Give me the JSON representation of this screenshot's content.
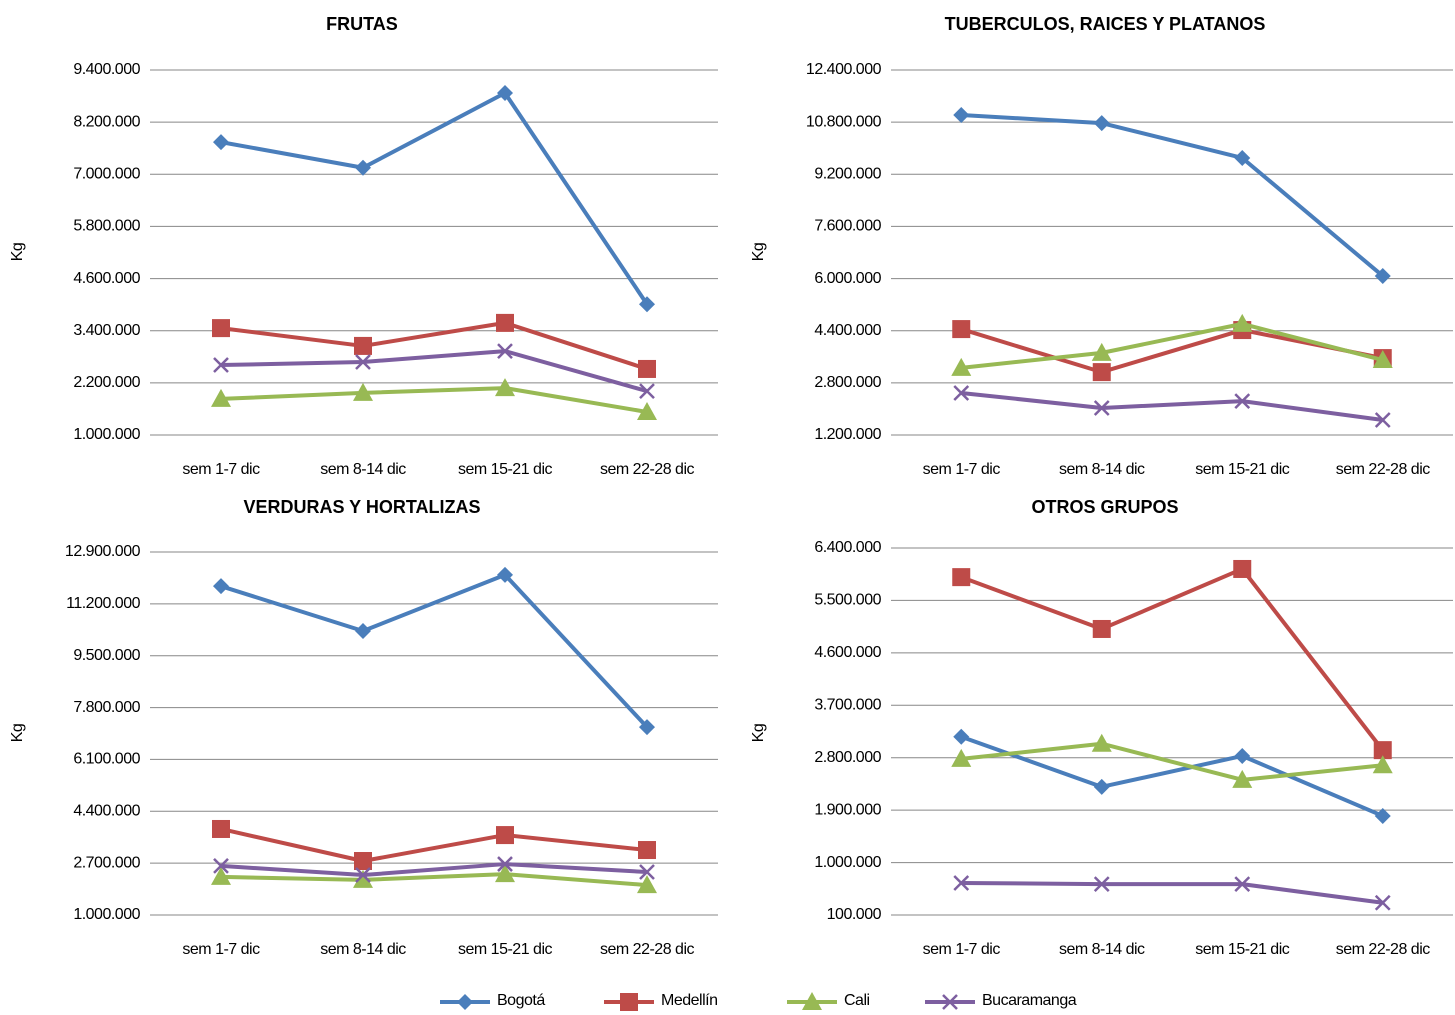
{
  "chart_data": [
    {
      "type": "line",
      "title": "FRUTAS",
      "ylabel": "Kg",
      "grid": true,
      "legend": "bottom",
      "categories": [
        "sem 1-7 dic",
        "sem 8-14 dic",
        "sem 15-21 dic",
        "sem 22-28 dic"
      ],
      "ylim": [
        1000000,
        9400000
      ],
      "yticks": [
        {
          "value": 1000000,
          "label": "1.000.000"
        },
        {
          "value": 2200000,
          "label": "2.200.000"
        },
        {
          "value": 3400000,
          "label": "3.400.000"
        },
        {
          "value": 4600000,
          "label": "4.600.000"
        },
        {
          "value": 5800000,
          "label": "5.800.000"
        },
        {
          "value": 7000000,
          "label": "7.000.000"
        },
        {
          "value": 8200000,
          "label": "8.200.000"
        },
        {
          "value": 9400000,
          "label": "9.400.000"
        }
      ],
      "series": [
        {
          "name": "Bogotá",
          "color": "#4a7ebb",
          "marker": "diamond",
          "values": [
            7740000,
            7150000,
            8870000,
            4010000
          ]
        },
        {
          "name": "Medellín",
          "color": "#be4b48",
          "marker": "square",
          "values": [
            3460000,
            3050000,
            3580000,
            2520000
          ]
        },
        {
          "name": "Cali",
          "color": "#98b954",
          "marker": "triangle",
          "values": [
            1830000,
            1970000,
            2080000,
            1530000
          ]
        },
        {
          "name": "Bucaramanga",
          "color": "#7d5fa0",
          "marker": "x",
          "values": [
            2610000,
            2680000,
            2930000,
            2010000
          ]
        }
      ]
    },
    {
      "type": "line",
      "title": "TUBERCULOS, RAICES Y PLATANOS",
      "ylabel": "Kg",
      "grid": true,
      "categories": [
        "sem 1-7 dic",
        "sem 8-14 dic",
        "sem 15-21 dic",
        "sem 22-28 dic"
      ],
      "ylim": [
        1200000,
        12400000
      ],
      "yticks": [
        {
          "value": 1200000,
          "label": "1.200.000"
        },
        {
          "value": 2800000,
          "label": "2.800.000"
        },
        {
          "value": 4400000,
          "label": "4.400.000"
        },
        {
          "value": 6000000,
          "label": "6.000.000"
        },
        {
          "value": 7600000,
          "label": "7.600.000"
        },
        {
          "value": 9200000,
          "label": "9.200.000"
        },
        {
          "value": 10800000,
          "label": "10.800.000"
        },
        {
          "value": 12400000,
          "label": "12.400.000"
        }
      ],
      "series": [
        {
          "name": "Bogotá",
          "color": "#4a7ebb",
          "marker": "diamond",
          "values": [
            11020000,
            10770000,
            9700000,
            6080000
          ]
        },
        {
          "name": "Medellín",
          "color": "#be4b48",
          "marker": "square",
          "values": [
            4450000,
            3130000,
            4420000,
            3560000
          ]
        },
        {
          "name": "Cali",
          "color": "#98b954",
          "marker": "triangle",
          "values": [
            3260000,
            3720000,
            4610000,
            3500000
          ]
        },
        {
          "name": "Bucaramanga",
          "color": "#7d5fa0",
          "marker": "x",
          "values": [
            2490000,
            2030000,
            2240000,
            1660000
          ]
        }
      ]
    },
    {
      "type": "line",
      "title": "VERDURAS Y HORTALIZAS",
      "ylabel": "Kg",
      "grid": true,
      "categories": [
        "sem 1-7 dic",
        "sem 8-14 dic",
        "sem 15-21 dic",
        "sem 22-28 dic"
      ],
      "ylim": [
        1000000,
        12900000
      ],
      "yticks": [
        {
          "value": 1000000,
          "label": "1.000.000"
        },
        {
          "value": 2700000,
          "label": "2.700.000"
        },
        {
          "value": 4400000,
          "label": "4.400.000"
        },
        {
          "value": 6100000,
          "label": "6.100.000"
        },
        {
          "value": 7800000,
          "label": "7.800.000"
        },
        {
          "value": 9500000,
          "label": "9.500.000"
        },
        {
          "value": 11200000,
          "label": "11.200.000"
        },
        {
          "value": 12900000,
          "label": "12.900.000"
        }
      ],
      "series": [
        {
          "name": "Bogotá",
          "color": "#4a7ebb",
          "marker": "diamond",
          "values": [
            11780000,
            10310000,
            12150000,
            7160000
          ]
        },
        {
          "name": "Medellín",
          "color": "#be4b48",
          "marker": "square",
          "values": [
            3820000,
            2770000,
            3620000,
            3130000
          ]
        },
        {
          "name": "Cali",
          "color": "#98b954",
          "marker": "triangle",
          "values": [
            2250000,
            2150000,
            2340000,
            1980000
          ]
        },
        {
          "name": "Bucaramanga",
          "color": "#7d5fa0",
          "marker": "x",
          "values": [
            2610000,
            2310000,
            2670000,
            2410000
          ]
        }
      ]
    },
    {
      "type": "line",
      "title": "OTROS GRUPOS",
      "ylabel": "Kg",
      "grid": true,
      "categories": [
        "sem 1-7 dic",
        "sem 8-14 dic",
        "sem 15-21 dic",
        "sem 22-28 dic"
      ],
      "ylim": [
        100000,
        6400000
      ],
      "yticks": [
        {
          "value": 100000,
          "label": "100.000"
        },
        {
          "value": 1000000,
          "label": "1.000.000"
        },
        {
          "value": 1900000,
          "label": "1.900.000"
        },
        {
          "value": 2800000,
          "label": "2.800.000"
        },
        {
          "value": 3700000,
          "label": "3.700.000"
        },
        {
          "value": 4600000,
          "label": "4.600.000"
        },
        {
          "value": 5500000,
          "label": "5.500.000"
        },
        {
          "value": 6400000,
          "label": "6.400.000"
        }
      ],
      "series": [
        {
          "name": "Bogotá",
          "color": "#4a7ebb",
          "marker": "diamond",
          "values": [
            3160000,
            2300000,
            2830000,
            1800000
          ]
        },
        {
          "name": "Medellín",
          "color": "#be4b48",
          "marker": "square",
          "values": [
            5900000,
            5010000,
            6040000,
            2930000
          ]
        },
        {
          "name": "Cali",
          "color": "#98b954",
          "marker": "triangle",
          "values": [
            2780000,
            3040000,
            2420000,
            2670000
          ]
        },
        {
          "name": "Bucaramanga",
          "color": "#7d5fa0",
          "marker": "x",
          "values": [
            650000,
            630000,
            630000,
            310000
          ]
        }
      ]
    }
  ]
}
